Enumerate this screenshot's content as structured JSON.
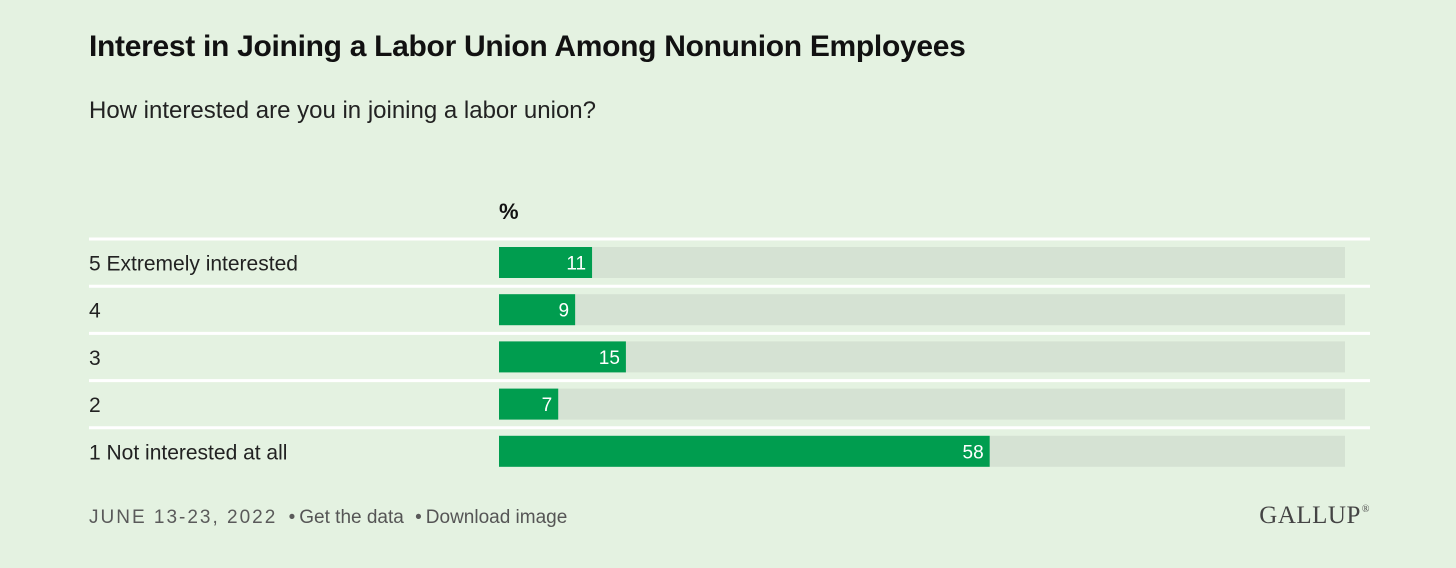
{
  "title": "Interest in Joining a Labor Union Among Nonunion Employees",
  "subtitle": "How interested are you in joining a labor union?",
  "chart_data": {
    "type": "bar",
    "orientation": "horizontal",
    "unit_label": "%",
    "categories": [
      "5 Extremely interested",
      "4",
      "3",
      "2",
      "1 Not interested at all"
    ],
    "values": [
      11,
      9,
      15,
      7,
      58
    ],
    "xlim": [
      0,
      100
    ],
    "bar_color": "#009d4f",
    "track_color": "#d5e2d3",
    "value_label_color": "#ffffff",
    "grid": false,
    "legend": "none"
  },
  "footer": {
    "date": "JUNE 13-23, 2022",
    "separator": "•",
    "get_data_label": "Get the data",
    "download_label": "Download image"
  },
  "logo": {
    "text": "GALLUP",
    "mark": "®"
  },
  "colors": {
    "background": "#e4f2e1",
    "bar": "#009d4f",
    "track": "#d5e2d3",
    "divider": "#ffffff"
  }
}
